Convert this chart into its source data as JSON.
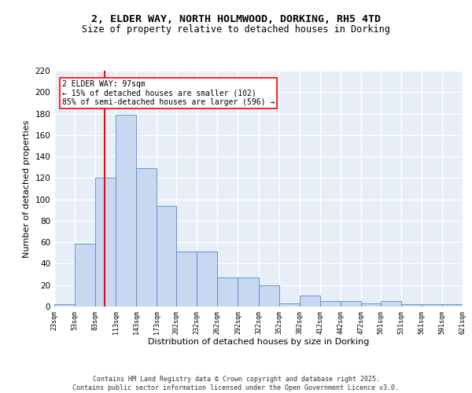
{
  "title_line1": "2, ELDER WAY, NORTH HOLMWOOD, DORKING, RH5 4TD",
  "title_line2": "Size of property relative to detached houses in Dorking",
  "xlabel": "Distribution of detached houses by size in Dorking",
  "ylabel": "Number of detached properties",
  "bar_values": [
    2,
    59,
    120,
    179,
    129,
    94,
    51,
    51,
    27,
    27,
    20,
    3,
    10,
    5,
    5,
    3,
    5,
    2,
    2,
    2
  ],
  "bin_edges": [
    23,
    53,
    83,
    113,
    143,
    173,
    202,
    232,
    262,
    292,
    322,
    352,
    382,
    412,
    442,
    472,
    501,
    531,
    561,
    591,
    621
  ],
  "tick_labels": [
    "23sqm",
    "53sqm",
    "83sqm",
    "113sqm",
    "143sqm",
    "173sqm",
    "202sqm",
    "232sqm",
    "262sqm",
    "292sqm",
    "322sqm",
    "352sqm",
    "382sqm",
    "412sqm",
    "442sqm",
    "472sqm",
    "501sqm",
    "531sqm",
    "561sqm",
    "591sqm",
    "621sqm"
  ],
  "bar_color": "#c8d8f0",
  "bar_edge_color": "#5588cc",
  "vline_x": 97,
  "vline_color": "red",
  "annotation_text": "2 ELDER WAY: 97sqm\n← 15% of detached houses are smaller (102)\n85% of semi-detached houses are larger (596) →",
  "annotation_box_color": "white",
  "annotation_box_edge_color": "red",
  "ylim": [
    0,
    220
  ],
  "yticks": [
    0,
    20,
    40,
    60,
    80,
    100,
    120,
    140,
    160,
    180,
    200,
    220
  ],
  "background_color": "#e8eef8",
  "footer_text": "Contains HM Land Registry data © Crown copyright and database right 2025.\nContains public sector information licensed under the Open Government Licence v3.0.",
  "grid_color": "white",
  "title_fontsize": 9.5,
  "subtitle_fontsize": 8.5
}
